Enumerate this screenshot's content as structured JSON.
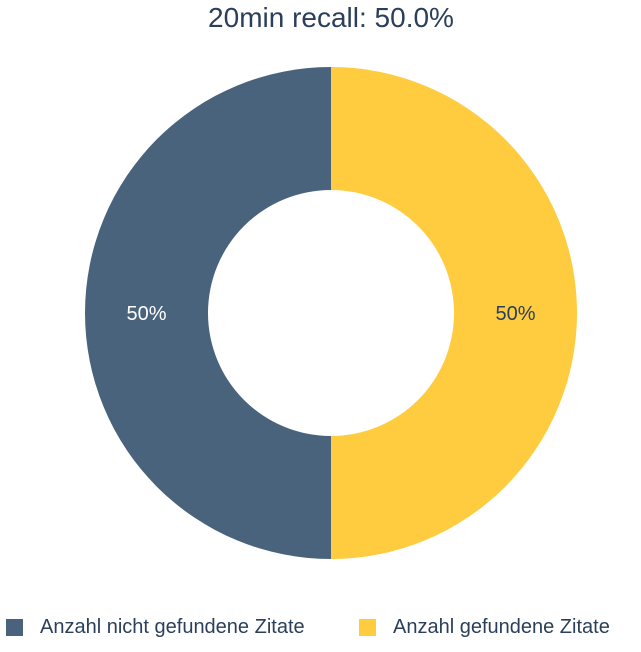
{
  "chart_data": {
    "type": "pie",
    "title": "20min recall: 50.0%",
    "donut": true,
    "legend_position": "bottom",
    "slices": [
      {
        "label": "Anzahl gefundene Zitate",
        "value": 50,
        "percent_label": "50%",
        "color": "#ffcb3f",
        "label_color": "#2b3f5a"
      },
      {
        "label": "Anzahl nicht gefundene Zitate",
        "value": 50,
        "percent_label": "50%",
        "color": "#4a637d",
        "label_color": "#ffffff"
      }
    ],
    "legend": [
      {
        "label": "Anzahl nicht gefundene Zitate",
        "color": "#4a637d"
      },
      {
        "label": "Anzahl gefundene Zitate",
        "color": "#ffcb3f"
      }
    ]
  }
}
